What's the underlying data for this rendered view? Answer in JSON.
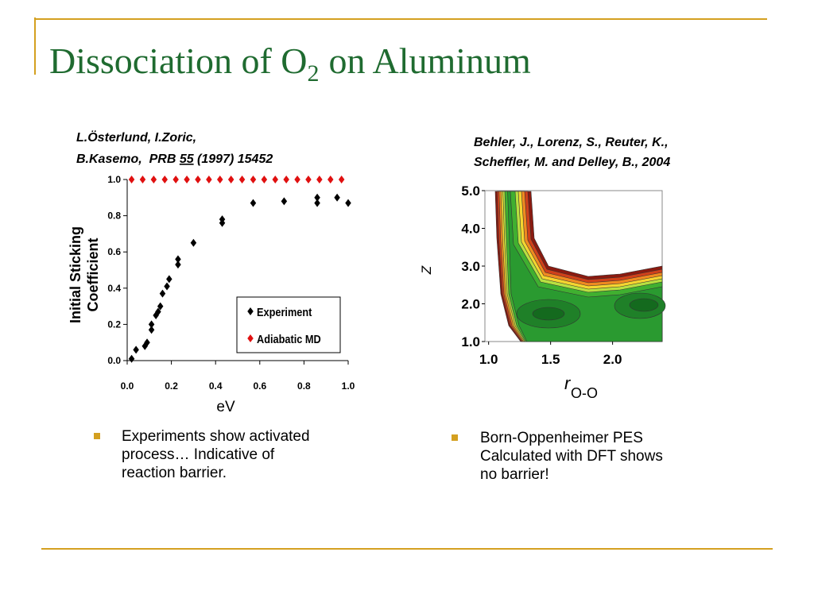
{
  "title": {
    "text_before": "Dissociation of O",
    "subscript": "2",
    "text_after": "on Aluminum"
  },
  "left_citation": {
    "line1": "L.Österlund, I.Zoric,",
    "line2_start": "B.Kasemo,  PRB ",
    "line2_volume": "55",
    "line2_end": " (1997) 15452"
  },
  "right_citation": {
    "lines": [
      "Behler, J., Lorenz, S., Reuter, K.,",
      "Scheffler, M. and Delley, B., 2004"
    ]
  },
  "left_bullet": {
    "lines": [
      "Experiments show activated",
      "process… Indicative of",
      "reaction barrier."
    ]
  },
  "right_bullet": {
    "lines": [
      "Born-Oppenheimer PES",
      "Calculated with DFT shows",
      "no barrier!"
    ]
  },
  "chart_data": [
    {
      "type": "scatter",
      "ylabel_lines": [
        "Initial Sticking",
        "Coefficient"
      ],
      "xlabel": "eV",
      "xlim": [
        0,
        1
      ],
      "ylim": [
        0,
        1
      ],
      "xticks": [
        {
          "value": 0,
          "label": "0.0"
        },
        {
          "value": 0.2,
          "label": "0.2"
        },
        {
          "value": 0.4,
          "label": "0.4"
        },
        {
          "value": 0.6,
          "label": "0.6"
        },
        {
          "value": 0.8,
          "label": "0.8"
        },
        {
          "value": 1,
          "label": "1.0"
        }
      ],
      "yticks": [
        {
          "value": 0,
          "label": "0.0"
        },
        {
          "value": 0.2,
          "label": "0.2"
        },
        {
          "value": 0.4,
          "label": "0.4"
        },
        {
          "value": 0.6,
          "label": "0.6"
        },
        {
          "value": 0.8,
          "label": "0.8"
        },
        {
          "value": 1,
          "label": "1.0"
        }
      ],
      "series": [
        {
          "name": "Experiment",
          "color": "#000000",
          "x": [
            0.02,
            0.04,
            0.08,
            0.09,
            0.11,
            0.11,
            0.13,
            0.14,
            0.15,
            0.16,
            0.18,
            0.19,
            0.23,
            0.23,
            0.3,
            0.43,
            0.43,
            0.57,
            0.71,
            0.86,
            0.86,
            0.95,
            1.0
          ],
          "values": [
            0.01,
            0.06,
            0.08,
            0.1,
            0.17,
            0.2,
            0.25,
            0.27,
            0.3,
            0.37,
            0.41,
            0.45,
            0.53,
            0.56,
            0.65,
            0.76,
            0.78,
            0.87,
            0.88,
            0.87,
            0.9,
            0.9,
            0.87
          ]
        },
        {
          "name": "Adiabatic MD",
          "color": "#e01010",
          "x": [
            0.02,
            0.07,
            0.12,
            0.17,
            0.22,
            0.27,
            0.32,
            0.37,
            0.42,
            0.47,
            0.52,
            0.57,
            0.62,
            0.67,
            0.72,
            0.77,
            0.82,
            0.87,
            0.92,
            0.97
          ],
          "values": [
            1,
            1,
            1,
            1,
            1,
            1,
            1,
            1,
            1,
            1,
            1,
            1,
            1,
            1,
            1,
            1,
            1,
            1,
            1,
            1
          ]
        }
      ]
    },
    {
      "type": "contour",
      "ylabel": "Z",
      "xlabel": "r",
      "xlabel_subscript": "O-O",
      "xlim": [
        0.97,
        2.4
      ],
      "ylim": [
        1,
        5
      ],
      "xticks": [
        {
          "value": 1,
          "label": "1.0"
        },
        {
          "value": 1.5,
          "label": "1.5"
        },
        {
          "value": 2,
          "label": "2.0"
        }
      ],
      "yticks": [
        {
          "value": 1,
          "label": "1.0"
        },
        {
          "value": 2,
          "label": "2.0"
        },
        {
          "value": 3,
          "label": "3.0"
        },
        {
          "value": 4,
          "label": "4.0"
        },
        {
          "value": 5,
          "label": "5.0"
        }
      ]
    }
  ]
}
